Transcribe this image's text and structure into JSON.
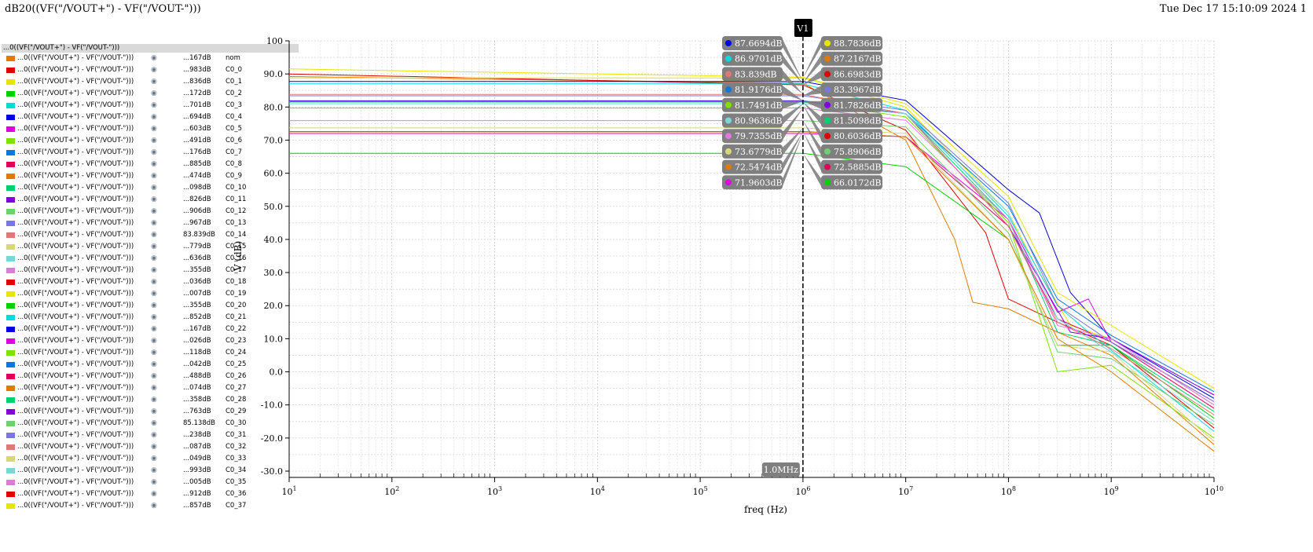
{
  "header": {
    "title": "dB20((VF(\"/VOUT+\") - VF(\"/VOUT-\")))",
    "datetime": "Tue Dec 17 15:10:09 2024  1"
  },
  "legend": {
    "header": "...0((VF(\"/VOUT+\") - VF(\"/VOUT-\")))",
    "item_label": "...0((VF(\"/VOUT+\") - VF(\"/VOUT-\")))",
    "eye_icon": "eye-icon",
    "items": [
      {
        "value": "...167dB",
        "id": "nom",
        "color": "#e07b00"
      },
      {
        "value": "...983dB",
        "id": "C0_0",
        "color": "#e00000"
      },
      {
        "value": "...836dB",
        "id": "C0_1",
        "color": "#e6e600"
      },
      {
        "value": "...172dB",
        "id": "C0_2",
        "color": "#00d000"
      },
      {
        "value": "...701dB",
        "id": "C0_3",
        "color": "#00dcdc"
      },
      {
        "value": "...694dB",
        "id": "C0_4",
        "color": "#0000e0"
      },
      {
        "value": "...603dB",
        "id": "C0_5",
        "color": "#e000e0"
      },
      {
        "value": "...491dB",
        "id": "C0_6",
        "color": "#80e000"
      },
      {
        "value": "...176dB",
        "id": "C0_7",
        "color": "#0a78e0"
      },
      {
        "value": "...885dB",
        "id": "C0_8",
        "color": "#e0005a"
      },
      {
        "value": "...474dB",
        "id": "C0_9",
        "color": "#e07b00"
      },
      {
        "value": "...098dB",
        "id": "C0_10",
        "color": "#00d070"
      },
      {
        "value": "...826dB",
        "id": "C0_11",
        "color": "#8000e0"
      },
      {
        "value": "...906dB",
        "id": "C0_12",
        "color": "#70d070"
      },
      {
        "value": "...967dB",
        "id": "C0_13",
        "color": "#7878e0"
      },
      {
        "value": "83.839dB",
        "id": "C0_14",
        "color": "#e07878"
      },
      {
        "value": "...779dB",
        "id": "C0_15",
        "color": "#d8d878"
      },
      {
        "value": "...636dB",
        "id": "C0_16",
        "color": "#78d8d8"
      },
      {
        "value": "...355dB",
        "id": "C0_17",
        "color": "#e078e0"
      },
      {
        "value": "...036dB",
        "id": "C0_18",
        "color": "#e00000"
      },
      {
        "value": "...007dB",
        "id": "C0_19",
        "color": "#e6e600"
      },
      {
        "value": "...355dB",
        "id": "C0_20",
        "color": "#00d000"
      },
      {
        "value": "...852dB",
        "id": "C0_21",
        "color": "#00dcdc"
      },
      {
        "value": "...167dB",
        "id": "C0_22",
        "color": "#0000e0"
      },
      {
        "value": "...026dB",
        "id": "C0_23",
        "color": "#e000e0"
      },
      {
        "value": "...118dB",
        "id": "C0_24",
        "color": "#80e000"
      },
      {
        "value": "...042dB",
        "id": "C0_25",
        "color": "#0a78e0"
      },
      {
        "value": "...488dB",
        "id": "C0_26",
        "color": "#e0005a"
      },
      {
        "value": "...074dB",
        "id": "C0_27",
        "color": "#e07b00"
      },
      {
        "value": "...358dB",
        "id": "C0_28",
        "color": "#00d070"
      },
      {
        "value": "...763dB",
        "id": "C0_29",
        "color": "#8000e0"
      },
      {
        "value": "85.138dB",
        "id": "C0_30",
        "color": "#70d070"
      },
      {
        "value": "...238dB",
        "id": "C0_31",
        "color": "#7878e0"
      },
      {
        "value": "...087dB",
        "id": "C0_32",
        "color": "#e07878"
      },
      {
        "value": "...049dB",
        "id": "C0_33",
        "color": "#d8d878"
      },
      {
        "value": "...993dB",
        "id": "C0_34",
        "color": "#78d8d8"
      },
      {
        "value": "...005dB",
        "id": "C0_35",
        "color": "#e078e0"
      },
      {
        "value": "...912dB",
        "id": "C0_36",
        "color": "#e00000"
      },
      {
        "value": "...857dB",
        "id": "C0_37",
        "color": "#e6e600"
      }
    ]
  },
  "chart_data": {
    "type": "line",
    "xscale": "log",
    "xlabel": "freq (Hz)",
    "ylabel": "V (dB)",
    "xlim": [
      10,
      10000000000
    ],
    "ylim": [
      -30,
      100
    ],
    "grid": true,
    "yticks": [
      "100",
      "90.0",
      "80.0",
      "70.0",
      "60.0",
      "50.0",
      "40.0",
      "30.0",
      "20.0",
      "10.0",
      "0.0",
      "-10.0",
      "-20.0",
      "-30.0"
    ],
    "xticks": [
      {
        "base": "10",
        "exp": "1"
      },
      {
        "base": "10",
        "exp": "2"
      },
      {
        "base": "10",
        "exp": "3"
      },
      {
        "base": "10",
        "exp": "4"
      },
      {
        "base": "10",
        "exp": "5"
      },
      {
        "base": "10",
        "exp": "6"
      },
      {
        "base": "10",
        "exp": "7"
      },
      {
        "base": "10",
        "exp": "8"
      },
      {
        "base": "10",
        "exp": "9"
      },
      {
        "base": "10",
        "exp": "10"
      }
    ],
    "marker": {
      "name": "V1",
      "x": 1000000,
      "x_label": "1.0MHz"
    },
    "series": [
      {
        "color": "#e07b00",
        "values": [
          [
            10,
            89.2
          ],
          [
            1000000,
            87.2
          ],
          [
            10000000,
            70
          ],
          [
            30000000,
            40
          ],
          [
            45000000,
            21
          ],
          [
            100000000,
            19
          ],
          [
            300000000,
            12
          ],
          [
            1000000000,
            5
          ],
          [
            10000000000,
            -22
          ]
        ]
      },
      {
        "color": "#e00000",
        "values": [
          [
            10,
            90.0
          ],
          [
            1000000,
            86.7
          ],
          [
            10000000,
            73
          ],
          [
            60000000,
            42
          ],
          [
            100000000,
            22
          ],
          [
            300000000,
            15
          ],
          [
            1000000000,
            8
          ],
          [
            10000000000,
            -17
          ]
        ]
      },
      {
        "color": "#e6e600",
        "values": [
          [
            10,
            88.8
          ],
          [
            1000000,
            88.8
          ],
          [
            10000000,
            80
          ],
          [
            100000000,
            48
          ],
          [
            200000000,
            30
          ],
          [
            400000000,
            14
          ],
          [
            1000000000,
            10
          ],
          [
            10000000000,
            -10
          ]
        ]
      },
      {
        "color": "#00d000",
        "values": [
          [
            10,
            66.0
          ],
          [
            1000000,
            66.0
          ],
          [
            10000000,
            62
          ],
          [
            100000000,
            40
          ],
          [
            300000000,
            8
          ],
          [
            1000000000,
            8
          ],
          [
            10000000000,
            -14
          ]
        ]
      },
      {
        "color": "#00dcdc",
        "values": [
          [
            10,
            87.0
          ],
          [
            1000000,
            87.0
          ],
          [
            10000000,
            79
          ],
          [
            100000000,
            47
          ],
          [
            300000000,
            20
          ],
          [
            600000000,
            12
          ],
          [
            10000000000,
            -18
          ]
        ]
      },
      {
        "color": "#0000e0",
        "values": [
          [
            10,
            87.7
          ],
          [
            1000000,
            87.7
          ],
          [
            10000000,
            82
          ],
          [
            100000000,
            55
          ],
          [
            200000000,
            48
          ],
          [
            400000000,
            24
          ],
          [
            1000000000,
            10
          ],
          [
            10000000000,
            -8
          ]
        ]
      },
      {
        "color": "#e000e0",
        "values": [
          [
            10,
            72.0
          ],
          [
            1000000,
            72.0
          ],
          [
            10000000,
            71
          ],
          [
            100000000,
            46
          ],
          [
            300000000,
            18
          ],
          [
            600000000,
            22
          ],
          [
            1000000000,
            9
          ],
          [
            10000000000,
            -9
          ]
        ]
      },
      {
        "color": "#80e000",
        "values": [
          [
            10,
            81.7
          ],
          [
            1000000,
            81.7
          ],
          [
            10000000,
            77
          ],
          [
            100000000,
            45
          ],
          [
            300000000,
            0
          ],
          [
            1000000000,
            2
          ],
          [
            10000000000,
            -20
          ]
        ]
      },
      {
        "color": "#0a78e0",
        "values": [
          [
            10,
            81.9
          ],
          [
            1000000,
            81.9
          ],
          [
            10000000,
            78
          ],
          [
            100000000,
            50
          ],
          [
            300000000,
            22
          ],
          [
            1000000000,
            11
          ],
          [
            10000000000,
            -6
          ]
        ]
      },
      {
        "color": "#e0005a",
        "values": [
          [
            10,
            72.6
          ],
          [
            1000000,
            72.6
          ],
          [
            10000000,
            71
          ],
          [
            100000000,
            44
          ],
          [
            300000000,
            16
          ],
          [
            1000000000,
            9
          ],
          [
            10000000000,
            -11
          ]
        ]
      },
      {
        "color": "#00d070",
        "values": [
          [
            10,
            81.5
          ],
          [
            1000000,
            81.5
          ],
          [
            10000000,
            78
          ],
          [
            100000000,
            46
          ],
          [
            300000000,
            12
          ],
          [
            1000000000,
            8
          ],
          [
            10000000000,
            -12
          ]
        ]
      },
      {
        "color": "#8000e0",
        "values": [
          [
            10,
            81.8
          ],
          [
            1000000,
            81.8
          ],
          [
            10000000,
            78
          ],
          [
            100000000,
            44
          ],
          [
            400000000,
            12
          ],
          [
            1000000000,
            10
          ],
          [
            10000000000,
            -7
          ]
        ]
      },
      {
        "color": "#70d070",
        "values": [
          [
            10,
            75.9
          ],
          [
            1000000,
            75.9
          ],
          [
            10000000,
            74
          ],
          [
            100000000,
            42
          ],
          [
            300000000,
            6
          ],
          [
            1000000000,
            4
          ],
          [
            10000000000,
            -16
          ]
        ]
      },
      {
        "color": "#7878e0",
        "values": [
          [
            10,
            83.4
          ],
          [
            1000000,
            83.4
          ],
          [
            10000000,
            79
          ],
          [
            100000000,
            51
          ],
          [
            300000000,
            20
          ],
          [
            1000000000,
            9
          ],
          [
            10000000000,
            -9
          ]
        ]
      },
      {
        "color": "#e07878",
        "values": [
          [
            10,
            83.8
          ],
          [
            1000000,
            83.8
          ],
          [
            10000000,
            78
          ],
          [
            100000000,
            44
          ],
          [
            300000000,
            15
          ],
          [
            1000000000,
            7
          ],
          [
            10000000000,
            -13
          ]
        ]
      },
      {
        "color": "#d8d878",
        "values": [
          [
            10,
            73.7
          ],
          [
            1000000,
            73.7
          ],
          [
            10000000,
            72
          ],
          [
            100000000,
            40
          ],
          [
            300000000,
            8
          ],
          [
            1000000000,
            6
          ],
          [
            10000000000,
            -21
          ]
        ]
      },
      {
        "color": "#78d8d8",
        "values": [
          [
            10,
            81.0
          ],
          [
            1000000,
            81.0
          ],
          [
            10000000,
            78
          ],
          [
            100000000,
            48
          ],
          [
            300000000,
            16
          ],
          [
            1000000000,
            6
          ],
          [
            10000000000,
            -15
          ]
        ]
      },
      {
        "color": "#e078e0",
        "values": [
          [
            10,
            79.7
          ],
          [
            1000000,
            79.7
          ],
          [
            10000000,
            76
          ],
          [
            100000000,
            46
          ],
          [
            300000000,
            14
          ],
          [
            1000000000,
            10
          ],
          [
            10000000000,
            -10
          ]
        ]
      },
      {
        "color": "#e07b00",
        "values": [
          [
            10,
            72.5
          ],
          [
            1000000,
            72.5
          ],
          [
            10000000,
            71
          ],
          [
            100000000,
            40
          ],
          [
            300000000,
            10
          ],
          [
            1000000000,
            0
          ],
          [
            10000000000,
            -24
          ]
        ]
      },
      {
        "color": "#e6e600",
        "values": [
          [
            10,
            91.5
          ],
          [
            1000000,
            89.0
          ],
          [
            10000000,
            81
          ],
          [
            100000000,
            53
          ],
          [
            300000000,
            24
          ],
          [
            1000000000,
            14
          ],
          [
            10000000000,
            -5
          ]
        ]
      }
    ],
    "left_labels": [
      {
        "text": "87.6694dB",
        "color": "#0000e0",
        "x_value": 1000000,
        "y_value": 87.67
      },
      {
        "text": "86.9701dB",
        "color": "#00dcdc",
        "x_value": 1000000,
        "y_value": 86.97
      },
      {
        "text": "83.839dB",
        "color": "#e07878",
        "x_value": 1000000,
        "y_value": 83.839
      },
      {
        "text": "81.9176dB",
        "color": "#0a78e0",
        "x_value": 1000000,
        "y_value": 81.92
      },
      {
        "text": "81.7491dB",
        "color": "#80e000",
        "x_value": 1000000,
        "y_value": 81.75
      },
      {
        "text": "80.9636dB",
        "color": "#78d8d8",
        "x_value": 1000000,
        "y_value": 80.96
      },
      {
        "text": "79.7355dB",
        "color": "#e078e0",
        "x_value": 1000000,
        "y_value": 79.74
      },
      {
        "text": "73.6779dB",
        "color": "#d8d878",
        "x_value": 1000000,
        "y_value": 73.68
      },
      {
        "text": "72.5474dB",
        "color": "#e07b00",
        "x_value": 1000000,
        "y_value": 72.55
      },
      {
        "text": "71.9603dB",
        "color": "#e000e0",
        "x_value": 1000000,
        "y_value": 71.96
      }
    ],
    "right_labels": [
      {
        "text": "88.7836dB",
        "color": "#e6e600",
        "x_value": 1000000,
        "y_value": 88.78
      },
      {
        "text": "87.2167dB",
        "color": "#e07b00",
        "x_value": 1000000,
        "y_value": 87.22
      },
      {
        "text": "86.6983dB",
        "color": "#e00000",
        "x_value": 1000000,
        "y_value": 86.7
      },
      {
        "text": "83.3967dB",
        "color": "#7878e0",
        "x_value": 1000000,
        "y_value": 83.4
      },
      {
        "text": "81.7826dB",
        "color": "#8000e0",
        "x_value": 1000000,
        "y_value": 81.78
      },
      {
        "text": "81.5098dB",
        "color": "#00d070",
        "x_value": 1000000,
        "y_value": 81.51
      },
      {
        "text": "80.6036dB",
        "color": "#e00000",
        "x_value": 1000000,
        "y_value": 80.6
      },
      {
        "text": "75.8906dB",
        "color": "#70d070",
        "x_value": 1000000,
        "y_value": 75.89
      },
      {
        "text": "72.5885dB",
        "color": "#e0005a",
        "x_value": 1000000,
        "y_value": 72.59
      },
      {
        "text": "66.0172dB",
        "color": "#00d000",
        "x_value": 1000000,
        "y_value": 66.02
      }
    ]
  }
}
